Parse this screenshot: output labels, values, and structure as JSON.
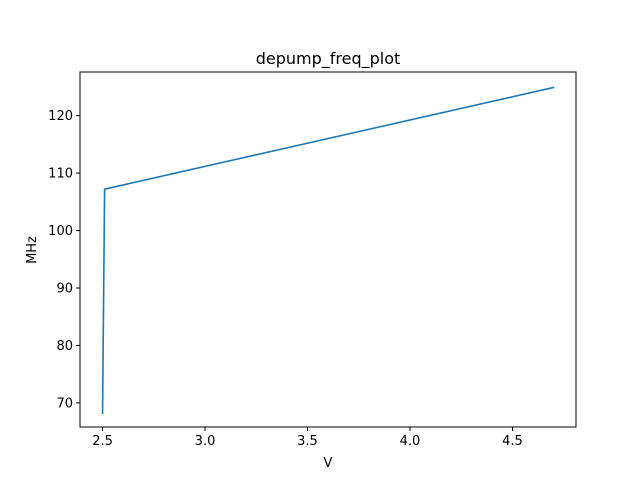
{
  "chart_data": {
    "type": "line",
    "title": "depump_freq_plot",
    "xlabel": "V",
    "ylabel": "MHz",
    "xlim": [
      2.39,
      4.81
    ],
    "ylim": [
      65.8,
      127.6
    ],
    "xticks": [
      2.5,
      3.0,
      3.5,
      4.0,
      4.5
    ],
    "xtick_labels": [
      "2.5",
      "3.0",
      "3.5",
      "4.0",
      "4.5"
    ],
    "yticks": [
      70,
      80,
      90,
      100,
      110,
      120
    ],
    "ytick_labels": [
      "70",
      "80",
      "90",
      "100",
      "110",
      "120"
    ],
    "grid": false,
    "legend": "none",
    "series": [
      {
        "color": "#1f77b4",
        "x": [
          2.5,
          2.51,
          4.7
        ],
        "y": [
          68.2,
          107.2,
          124.9
        ]
      }
    ]
  }
}
